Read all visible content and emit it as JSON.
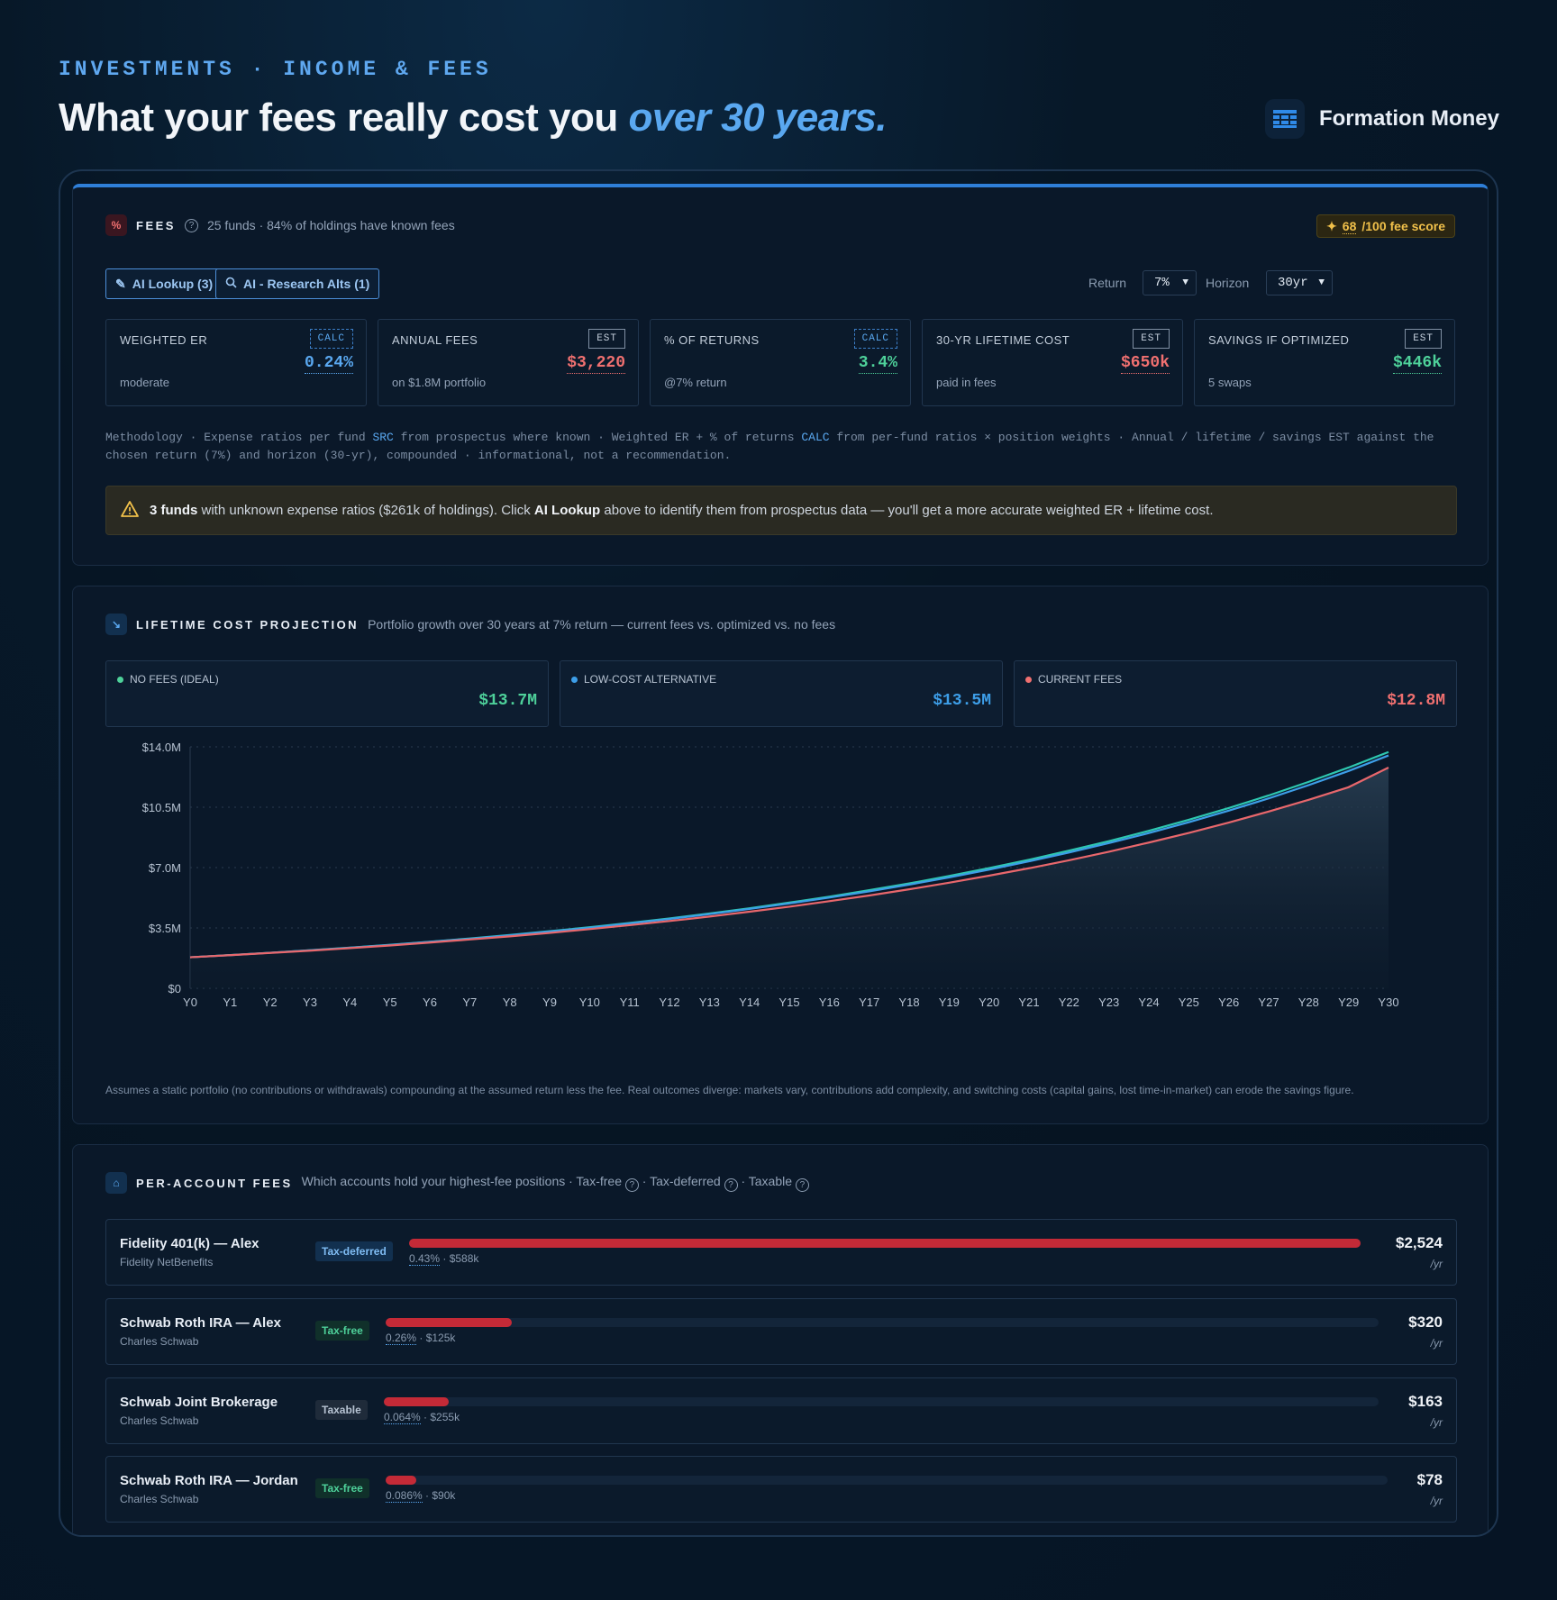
{
  "header": {
    "eyebrow": "INVESTMENTS · INCOME & FEES",
    "headline_main": "What your fees really cost you ",
    "headline_emph": "over 30 years.",
    "brand_name": "Formation Money",
    "brand_icon": "grid-logo-icon"
  },
  "fees": {
    "title": "FEES",
    "subtitle": "25 funds · 84% of holdings have known fees",
    "score_value": "68",
    "score_suffix": "/100 fee score",
    "ai_lookup_label": "AI Lookup (3)",
    "ai_research_label": "AI - Research Alts (1)",
    "return_label": "Return",
    "return_value": "7%",
    "horizon_label": "Horizon",
    "horizon_value": "30yr",
    "metrics": [
      {
        "label": "WEIGHTED ER",
        "tag": "CALC",
        "value": "0.24%",
        "sub": "moderate",
        "color": "#5aa8f0"
      },
      {
        "label": "ANNUAL FEES",
        "tag": "EST",
        "value": "$3,220",
        "sub": "on $1.8M portfolio",
        "color": "#f07070"
      },
      {
        "label": "% OF RETURNS",
        "tag": "CALC",
        "value": "3.4%",
        "sub": "@7% return",
        "color": "#4ed19a"
      },
      {
        "label": "30-YR LIFETIME COST",
        "tag": "EST",
        "value": "$650k",
        "sub": "paid in fees",
        "color": "#f07070"
      },
      {
        "label": "SAVINGS IF OPTIMIZED",
        "tag": "EST",
        "value": "$446k",
        "sub": "5 swaps",
        "color": "#4ed19a"
      }
    ],
    "methodology_a": "Methodology · Expense ratios per fund ",
    "methodology_src": "SRC",
    "methodology_b": " from prospectus where known · Weighted ER + % of returns ",
    "methodology_calc": "CALC",
    "methodology_c": " from per-fund ratios × position weights · Annual / lifetime / savings EST against the chosen return (7%) and horizon (30-yr), compounded · informational, not a recommendation.",
    "warning_bold": "3 funds",
    "warning_a": " with unknown expense ratios ($261k of holdings). Click ",
    "warning_link": "AI Lookup",
    "warning_b": " above to identify them from prospectus data — you'll get a more accurate weighted ER + lifetime cost."
  },
  "projection": {
    "title": "LIFETIME COST PROJECTION",
    "subtitle": "Portfolio growth over 30 years at 7% return — current fees vs. optimized vs. no fees",
    "legend": [
      {
        "label": "NO FEES (IDEAL)",
        "value": "$13.7M",
        "color": "#4ed19a"
      },
      {
        "label": "LOW-COST ALTERNATIVE",
        "value": "$13.5M",
        "color": "#3d9ee8"
      },
      {
        "label": "CURRENT FEES",
        "value": "$12.8M",
        "color": "#f07070"
      }
    ],
    "disclaimer": "Assumes a static portfolio (no contributions or withdrawals) compounding at the assumed return less the fee. Real outcomes diverge: markets vary, contributions add complexity, and switching costs (capital gains, lost time-in-market) can erode the savings figure."
  },
  "chart_data": {
    "type": "area",
    "x": [
      "Y0",
      "Y1",
      "Y2",
      "Y3",
      "Y4",
      "Y5",
      "Y6",
      "Y7",
      "Y8",
      "Y9",
      "Y10",
      "Y11",
      "Y12",
      "Y13",
      "Y14",
      "Y15",
      "Y16",
      "Y17",
      "Y18",
      "Y19",
      "Y20",
      "Y21",
      "Y22",
      "Y23",
      "Y24",
      "Y25",
      "Y26",
      "Y27",
      "Y28",
      "Y29",
      "Y30"
    ],
    "ylim": [
      0,
      14000000
    ],
    "yticks": [
      "$0",
      "$3.5M",
      "$7.0M",
      "$10.5M",
      "$14.0M"
    ],
    "grid": true,
    "series": [
      {
        "name": "NO FEES (IDEAL)",
        "color": "#2ec7b0",
        "values": [
          1.8,
          1.93,
          2.06,
          2.21,
          2.36,
          2.52,
          2.7,
          2.89,
          3.09,
          3.31,
          3.54,
          3.79,
          4.05,
          4.34,
          4.64,
          4.97,
          5.31,
          5.69,
          6.08,
          6.51,
          6.97,
          7.45,
          7.98,
          8.53,
          9.13,
          9.77,
          10.45,
          11.18,
          11.97,
          12.8,
          13.7
        ]
      },
      {
        "name": "LOW-COST ALTERNATIVE",
        "color": "#3d9ee8",
        "values": [
          1.8,
          1.92,
          2.06,
          2.2,
          2.35,
          2.51,
          2.69,
          2.87,
          3.07,
          3.29,
          3.51,
          3.76,
          4.02,
          4.3,
          4.6,
          4.92,
          5.26,
          5.62,
          6.01,
          6.43,
          6.88,
          7.36,
          7.87,
          8.42,
          9.0,
          9.63,
          10.3,
          11.01,
          11.78,
          12.6,
          13.5
        ]
      },
      {
        "name": "CURRENT FEES",
        "color": "#e8676c",
        "values": [
          1.8,
          1.92,
          2.05,
          2.18,
          2.33,
          2.48,
          2.65,
          2.83,
          3.01,
          3.21,
          3.43,
          3.66,
          3.9,
          4.16,
          4.44,
          4.73,
          5.05,
          5.38,
          5.74,
          6.12,
          6.53,
          6.96,
          7.42,
          7.92,
          8.45,
          9.01,
          9.61,
          10.25,
          10.93,
          11.66,
          12.8
        ]
      }
    ],
    "units": "millions"
  },
  "accounts": {
    "title": "PER-ACCOUNT FEES",
    "subtitle_a": "Which accounts hold your highest-fee positions · Tax-free ",
    "subtitle_b": " · Tax-deferred ",
    "subtitle_c": " · Taxable ",
    "rows": [
      {
        "name": "Fidelity 401(k) — Alex",
        "inst": "Fidelity NetBenefits",
        "chip": "Tax-deferred",
        "pct": "0.43%",
        "bal": " · $588k",
        "amount": "$2,524",
        "per": "/yr",
        "fill": 1.0
      },
      {
        "name": "Schwab Roth IRA — Alex",
        "inst": "Charles Schwab",
        "chip": "Tax-free",
        "pct": "0.26%",
        "bal": " · $125k",
        "amount": "$320",
        "per": "/yr",
        "fill": 0.127
      },
      {
        "name": "Schwab Joint Brokerage",
        "inst": "Charles Schwab",
        "chip": "Taxable",
        "pct": "0.064%",
        "bal": " · $255k",
        "amount": "$163",
        "per": "/yr",
        "fill": 0.065
      },
      {
        "name": "Schwab Roth IRA — Jordan",
        "inst": "Charles Schwab",
        "chip": "Tax-free",
        "pct": "0.086%",
        "bal": " · $90k",
        "amount": "$78",
        "per": "/yr",
        "fill": 0.031
      }
    ]
  }
}
